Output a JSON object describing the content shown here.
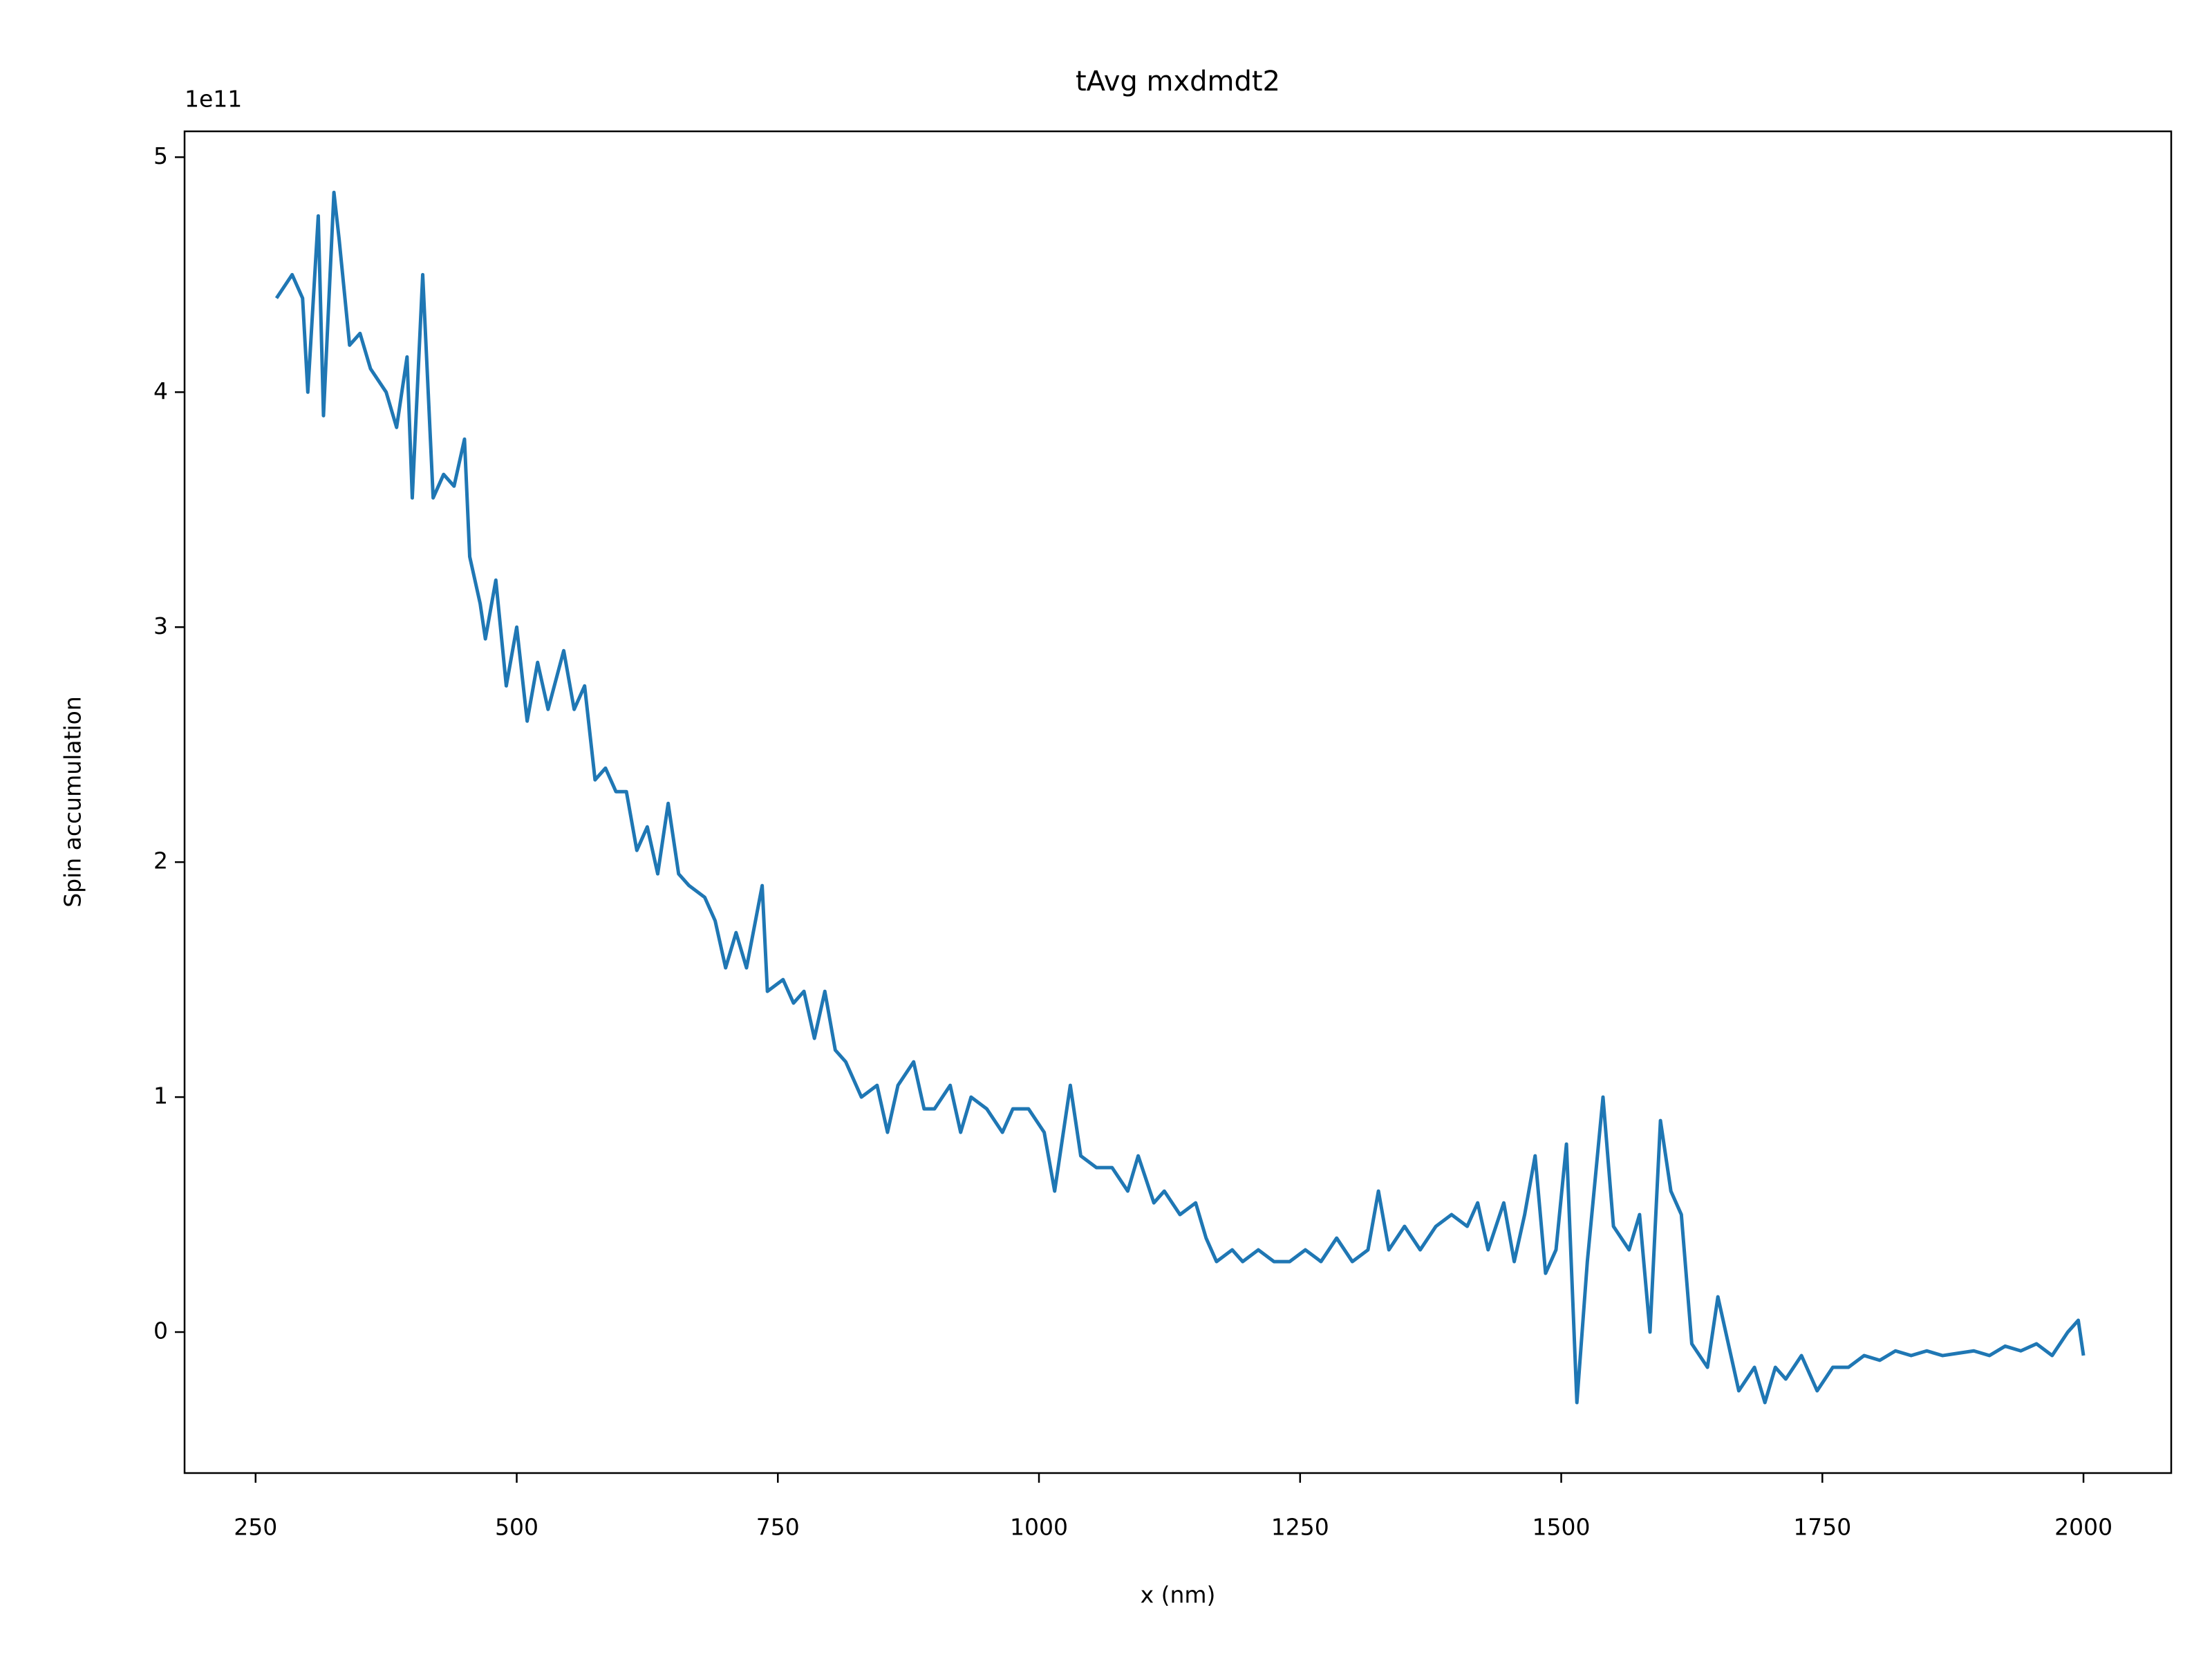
{
  "chart_data": {
    "type": "line",
    "title": "tAvg mxdmdt2",
    "xlabel": "x (nm)",
    "ylabel": "Spin accumulation",
    "y_offset_label": "1e11",
    "x": [
      270,
      285,
      295,
      300,
      310,
      315,
      325,
      330,
      340,
      350,
      360,
      375,
      385,
      395,
      400,
      410,
      420,
      430,
      440,
      450,
      455,
      465,
      470,
      480,
      490,
      500,
      510,
      520,
      530,
      545,
      555,
      565,
      575,
      585,
      595,
      605,
      615,
      625,
      635,
      645,
      655,
      665,
      680,
      690,
      700,
      710,
      720,
      735,
      740,
      755,
      765,
      775,
      785,
      795,
      805,
      815,
      830,
      845,
      855,
      865,
      880,
      890,
      900,
      915,
      925,
      935,
      950,
      965,
      975,
      990,
      1005,
      1015,
      1030,
      1040,
      1055,
      1070,
      1085,
      1095,
      1110,
      1120,
      1135,
      1150,
      1160,
      1170,
      1185,
      1195,
      1210,
      1225,
      1240,
      1255,
      1270,
      1285,
      1300,
      1315,
      1325,
      1335,
      1350,
      1365,
      1380,
      1395,
      1410,
      1420,
      1430,
      1445,
      1455,
      1465,
      1475,
      1485,
      1495,
      1505,
      1515,
      1525,
      1540,
      1550,
      1565,
      1575,
      1585,
      1595,
      1605,
      1615,
      1625,
      1640,
      1650,
      1660,
      1670,
      1685,
      1695,
      1705,
      1715,
      1730,
      1745,
      1760,
      1775,
      1790,
      1805,
      1820,
      1835,
      1850,
      1865,
      1880,
      1895,
      1910,
      1925,
      1940,
      1955,
      1970,
      1985,
      1995,
      2000
    ],
    "series": [
      {
        "name": "mxdmdt2",
        "color": "#1f77b4",
        "values": [
          4.4,
          4.5,
          4.4,
          4.0,
          4.75,
          3.9,
          4.85,
          4.65,
          4.2,
          4.25,
          4.1,
          4.0,
          3.85,
          4.15,
          3.55,
          4.5,
          3.55,
          3.65,
          3.6,
          3.8,
          3.3,
          3.1,
          2.95,
          3.2,
          2.75,
          3.0,
          2.6,
          2.85,
          2.65,
          2.9,
          2.65,
          2.75,
          2.35,
          2.4,
          2.3,
          2.3,
          2.05,
          2.15,
          1.95,
          2.25,
          1.95,
          1.9,
          1.85,
          1.75,
          1.55,
          1.7,
          1.55,
          1.9,
          1.45,
          1.5,
          1.4,
          1.45,
          1.25,
          1.45,
          1.2,
          1.15,
          1.0,
          1.05,
          0.85,
          1.05,
          1.15,
          0.95,
          0.95,
          1.05,
          0.85,
          1.0,
          0.95,
          0.85,
          0.95,
          0.95,
          0.85,
          0.6,
          1.05,
          0.75,
          0.7,
          0.7,
          0.6,
          0.75,
          0.55,
          0.6,
          0.5,
          0.55,
          0.4,
          0.3,
          0.35,
          0.3,
          0.35,
          0.3,
          0.3,
          0.35,
          0.3,
          0.4,
          0.3,
          0.35,
          0.6,
          0.35,
          0.45,
          0.35,
          0.45,
          0.5,
          0.45,
          0.55,
          0.35,
          0.55,
          0.3,
          0.5,
          0.75,
          0.25,
          0.35,
          0.8,
          -0.3,
          0.3,
          1.0,
          0.45,
          0.35,
          0.5,
          0.0,
          0.9,
          0.6,
          0.5,
          -0.05,
          -0.15,
          0.15,
          -0.05,
          -0.25,
          -0.15,
          -0.3,
          -0.15,
          -0.2,
          -0.1,
          -0.25,
          -0.15,
          -0.15,
          -0.1,
          -0.12,
          -0.08,
          -0.1,
          -0.08,
          -0.1,
          -0.09,
          -0.08,
          -0.1,
          -0.06,
          -0.08,
          -0.05,
          -0.1,
          0.0,
          0.05,
          -0.1
        ]
      }
    ],
    "xlim": [
      182,
      2084
    ],
    "xticks": [
      250,
      500,
      750,
      1000,
      1250,
      1500,
      1750,
      2000
    ],
    "ylim": [
      -0.6,
      5.11
    ],
    "yticks": [
      0,
      1,
      2,
      3,
      4,
      5
    ],
    "grid": false
  }
}
